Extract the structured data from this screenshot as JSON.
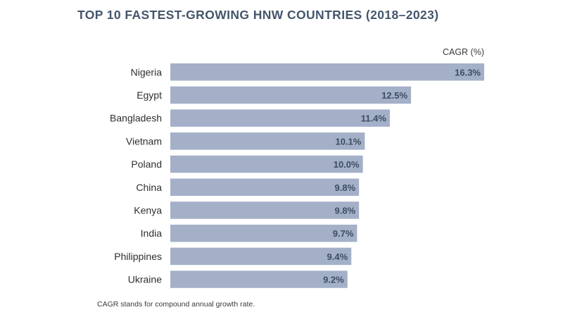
{
  "chart_data": {
    "type": "bar",
    "orientation": "horizontal",
    "title": "TOP 10 FASTEST-GROWING HNW COUNTRIES (2018–2023)",
    "unit_label": "CAGR (%)",
    "categories": [
      "Nigeria",
      "Egypt",
      "Bangladesh",
      "Vietnam",
      "Poland",
      "China",
      "Kenya",
      "India",
      "Philippines",
      "Ukraine"
    ],
    "values": [
      16.3,
      12.5,
      11.4,
      10.1,
      10.0,
      9.8,
      9.8,
      9.7,
      9.4,
      9.2
    ],
    "value_labels": [
      "16.3%",
      "12.5%",
      "11.4%",
      "10.1%",
      "10.0%",
      "9.8%",
      "9.8%",
      "9.7%",
      "9.4%",
      "9.2%"
    ],
    "bar_color": "#a4b0c8",
    "value_label_color": "#3c4d63",
    "title_color": "#44566c",
    "grid": false,
    "footnote": "CAGR stands for compound annual growth rate."
  }
}
